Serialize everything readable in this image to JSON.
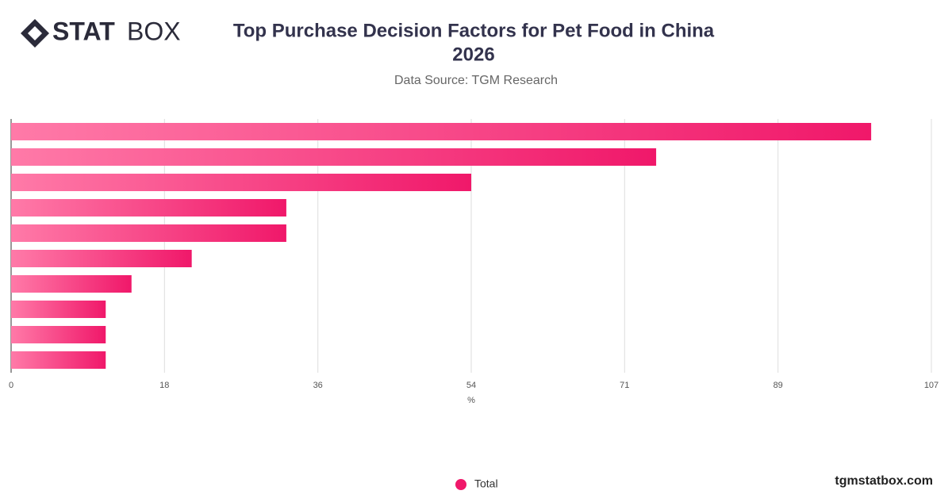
{
  "logo": {
    "bold": "STAT",
    "light": "BOX"
  },
  "footer": "tgmstatbox.com",
  "chart_data": {
    "type": "bar",
    "orientation": "horizontal",
    "title": "Top Purchase Decision Factors for Pet Food in China",
    "subtitle": "2026",
    "source": "Data Source: TGM Research",
    "xlabel": "%",
    "categories": [
      null,
      null,
      null,
      null,
      null,
      null,
      null,
      null,
      null,
      null
    ],
    "series": [
      {
        "name": "Total",
        "color": "#f0186a",
        "values": [
          100,
          75,
          53.5,
          32,
          32,
          21,
          14,
          11,
          11,
          11
        ]
      }
    ],
    "xlim": [
      0,
      107
    ],
    "xticks": [
      0,
      {
        "value": 17.83,
        "label": "18"
      },
      {
        "value": 35.67,
        "label": "36"
      },
      {
        "value": 53.5,
        "label": "54"
      },
      {
        "value": 71.33,
        "label": "71"
      },
      {
        "value": 89.17,
        "label": "89"
      },
      107
    ],
    "grid": true,
    "legend": "bottom"
  }
}
